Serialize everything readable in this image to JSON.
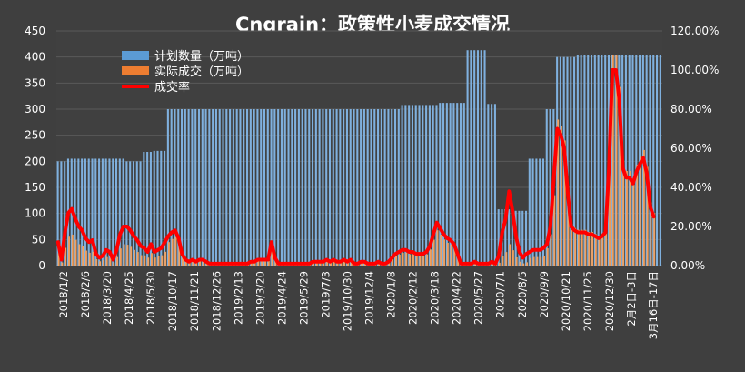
{
  "chart_data": {
    "type": "bar+line",
    "title": "Cngrain：政策性小麦成交情况",
    "legend": {
      "placement": "top-left",
      "items": [
        {
          "label": "计划数量（万吨）",
          "color": "#5b9bd5"
        },
        {
          "label": "实际成交（万吨）",
          "color": "#ed7d31"
        },
        {
          "label": "成交率",
          "color": "#ff0000"
        }
      ]
    },
    "y_left": {
      "min": 0,
      "max": 450,
      "ticks": [
        "0",
        "50",
        "100",
        "150",
        "200",
        "250",
        "300",
        "350",
        "400",
        "450"
      ]
    },
    "y_right": {
      "min": 0,
      "max": 1.2,
      "ticks": [
        "0.00%",
        "20.00%",
        "40.00%",
        "60.00%",
        "80.00%",
        "100.00%",
        "120.00%"
      ]
    },
    "x_tick_labels": [
      "2018/1/2",
      "2018/2/6",
      "2018/3/20",
      "2018/4/25",
      "2018/5/30",
      "2018/10/17",
      "2018/11/21",
      "2018/12/26",
      "2019/2/13",
      "2019/3/20",
      "2019/4/24",
      "2019/5/29",
      "2019/7/3",
      "2019/10/30",
      "2019/12/4",
      "2020/1/8",
      "2020/2/12",
      "2020/3/18",
      "2020/4/22",
      "2020/5/27",
      "2020/7/1",
      "2020/8/5",
      "2020/9/9",
      "2020/10/21",
      "2020/11/25",
      "2020/12/30",
      "2月2日-3日",
      "3月16日-17日"
    ],
    "planned_segments": [
      {
        "from": 0,
        "to": 3,
        "value": 200
      },
      {
        "from": 3,
        "to": 10,
        "value": 205
      },
      {
        "from": 10,
        "to": 20,
        "value": 205
      },
      {
        "from": 20,
        "to": 25,
        "value": 200
      },
      {
        "from": 25,
        "to": 28,
        "value": 218
      },
      {
        "from": 28,
        "to": 32,
        "value": 220
      },
      {
        "from": 32,
        "to": 51,
        "value": 300
      },
      {
        "from": 51,
        "to": 66,
        "value": 300
      },
      {
        "from": 66,
        "to": 86,
        "value": 300
      },
      {
        "from": 86,
        "to": 100,
        "value": 300
      },
      {
        "from": 100,
        "to": 111,
        "value": 308
      },
      {
        "from": 111,
        "to": 119,
        "value": 312
      },
      {
        "from": 119,
        "to": 125,
        "value": 413
      },
      {
        "from": 125,
        "to": 128,
        "value": 310
      },
      {
        "from": 128,
        "to": 132,
        "value": 108
      },
      {
        "from": 132,
        "to": 137,
        "value": 105
      },
      {
        "from": 137,
        "to": 142,
        "value": 205
      },
      {
        "from": 142,
        "to": 145,
        "value": 300
      },
      {
        "from": 145,
        "to": 151,
        "value": 400
      },
      {
        "from": 151,
        "to": 176,
        "value": 403
      }
    ],
    "rate_points": [
      [
        0,
        0.12
      ],
      [
        1,
        0.03
      ],
      [
        2,
        0.17
      ],
      [
        3,
        0.27
      ],
      [
        4,
        0.29
      ],
      [
        5,
        0.24
      ],
      [
        6,
        0.2
      ],
      [
        7,
        0.18
      ],
      [
        8,
        0.14
      ],
      [
        9,
        0.12
      ],
      [
        10,
        0.13
      ],
      [
        11,
        0.06
      ],
      [
        12,
        0.04
      ],
      [
        13,
        0.05
      ],
      [
        14,
        0.08
      ],
      [
        15,
        0.07
      ],
      [
        16,
        0.03
      ],
      [
        17,
        0.08
      ],
      [
        18,
        0.16
      ],
      [
        19,
        0.2
      ],
      [
        20,
        0.2
      ],
      [
        21,
        0.18
      ],
      [
        22,
        0.15
      ],
      [
        23,
        0.13
      ],
      [
        24,
        0.1
      ],
      [
        25,
        0.09
      ],
      [
        26,
        0.07
      ],
      [
        27,
        0.11
      ],
      [
        28,
        0.07
      ],
      [
        29,
        0.08
      ],
      [
        30,
        0.09
      ],
      [
        31,
        0.12
      ],
      [
        32,
        0.15
      ],
      [
        33,
        0.17
      ],
      [
        34,
        0.18
      ],
      [
        35,
        0.14
      ],
      [
        36,
        0.06
      ],
      [
        37,
        0.03
      ],
      [
        38,
        0.02
      ],
      [
        39,
        0.03
      ],
      [
        40,
        0.02
      ],
      [
        41,
        0.03
      ],
      [
        42,
        0.03
      ],
      [
        43,
        0.02
      ],
      [
        44,
        0.01
      ],
      [
        45,
        0.01
      ],
      [
        46,
        0.01
      ],
      [
        47,
        0.01
      ],
      [
        48,
        0.01
      ],
      [
        49,
        0.01
      ],
      [
        50,
        0.01
      ],
      [
        51,
        0.01
      ],
      [
        52,
        0.01
      ],
      [
        53,
        0.01
      ],
      [
        54,
        0.01
      ],
      [
        55,
        0.01
      ],
      [
        56,
        0.02
      ],
      [
        57,
        0.02
      ],
      [
        58,
        0.03
      ],
      [
        59,
        0.03
      ],
      [
        60,
        0.03
      ],
      [
        61,
        0.03
      ],
      [
        62,
        0.12
      ],
      [
        63,
        0.04
      ],
      [
        64,
        0.01
      ],
      [
        65,
        0.01
      ],
      [
        66,
        0.01
      ],
      [
        67,
        0.01
      ],
      [
        68,
        0.01
      ],
      [
        69,
        0.01
      ],
      [
        70,
        0.01
      ],
      [
        71,
        0.01
      ],
      [
        72,
        0.01
      ],
      [
        73,
        0.01
      ],
      [
        74,
        0.02
      ],
      [
        75,
        0.02
      ],
      [
        76,
        0.02
      ],
      [
        77,
        0.02
      ],
      [
        78,
        0.03
      ],
      [
        79,
        0.02
      ],
      [
        80,
        0.03
      ],
      [
        81,
        0.02
      ],
      [
        82,
        0.02
      ],
      [
        83,
        0.03
      ],
      [
        84,
        0.02
      ],
      [
        85,
        0.03
      ],
      [
        86,
        0.01
      ],
      [
        87,
        0.01
      ],
      [
        88,
        0.02
      ],
      [
        89,
        0.02
      ],
      [
        90,
        0.01
      ],
      [
        91,
        0.01
      ],
      [
        92,
        0.01
      ],
      [
        93,
        0.02
      ],
      [
        94,
        0.01
      ],
      [
        95,
        0.01
      ],
      [
        96,
        0.02
      ],
      [
        97,
        0.04
      ],
      [
        98,
        0.06
      ],
      [
        99,
        0.07
      ],
      [
        100,
        0.08
      ],
      [
        101,
        0.08
      ],
      [
        102,
        0.07
      ],
      [
        103,
        0.07
      ],
      [
        104,
        0.06
      ],
      [
        105,
        0.06
      ],
      [
        106,
        0.06
      ],
      [
        107,
        0.07
      ],
      [
        108,
        0.1
      ],
      [
        109,
        0.16
      ],
      [
        110,
        0.22
      ],
      [
        111,
        0.19
      ],
      [
        112,
        0.16
      ],
      [
        113,
        0.14
      ],
      [
        114,
        0.13
      ],
      [
        115,
        0.11
      ],
      [
        116,
        0.06
      ],
      [
        117,
        0.01
      ],
      [
        118,
        0.01
      ],
      [
        119,
        0.01
      ],
      [
        120,
        0.01
      ],
      [
        121,
        0.02
      ],
      [
        122,
        0.01
      ],
      [
        123,
        0.01
      ],
      [
        124,
        0.01
      ],
      [
        125,
        0.01
      ],
      [
        126,
        0.02
      ],
      [
        127,
        0.01
      ],
      [
        128,
        0.05
      ],
      [
        129,
        0.17
      ],
      [
        130,
        0.24
      ],
      [
        131,
        0.38
      ],
      [
        132,
        0.28
      ],
      [
        133,
        0.15
      ],
      [
        134,
        0.07
      ],
      [
        135,
        0.04
      ],
      [
        136,
        0.06
      ],
      [
        137,
        0.07
      ],
      [
        138,
        0.08
      ],
      [
        139,
        0.08
      ],
      [
        140,
        0.08
      ],
      [
        141,
        0.09
      ],
      [
        142,
        0.11
      ],
      [
        143,
        0.2
      ],
      [
        144,
        0.45
      ],
      [
        145,
        0.7
      ],
      [
        146,
        0.67
      ],
      [
        147,
        0.6
      ],
      [
        148,
        0.38
      ],
      [
        149,
        0.2
      ],
      [
        150,
        0.18
      ],
      [
        151,
        0.17
      ],
      [
        152,
        0.17
      ],
      [
        153,
        0.17
      ],
      [
        154,
        0.16
      ],
      [
        155,
        0.16
      ],
      [
        156,
        0.15
      ],
      [
        157,
        0.14
      ],
      [
        158,
        0.15
      ],
      [
        159,
        0.17
      ],
      [
        160,
        0.5
      ],
      [
        161,
        1.0
      ],
      [
        162,
        1.0
      ],
      [
        163,
        0.85
      ],
      [
        164,
        0.5
      ],
      [
        165,
        0.45
      ],
      [
        166,
        0.45
      ],
      [
        167,
        0.42
      ],
      [
        168,
        0.48
      ],
      [
        169,
        0.52
      ],
      [
        170,
        0.55
      ],
      [
        171,
        0.47
      ],
      [
        172,
        0.3
      ],
      [
        173,
        0.25
      ]
    ]
  }
}
